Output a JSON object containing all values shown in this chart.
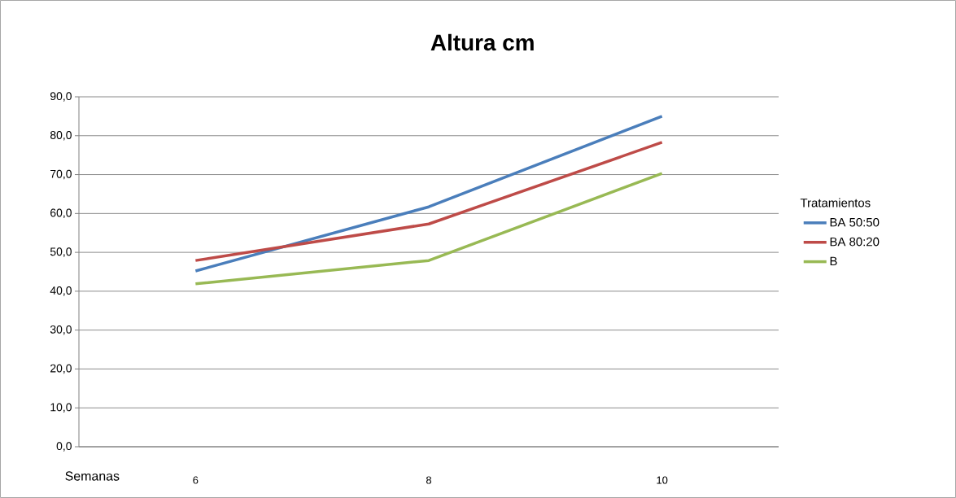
{
  "chart_data": {
    "type": "line",
    "title": "Altura cm",
    "xlabel": "Semanas",
    "categories": [
      "6",
      "8",
      "10"
    ],
    "series": [
      {
        "name": "BA 50:50",
        "color": "#4a7ebb",
        "values": [
          45.2,
          61.7,
          85.0
        ]
      },
      {
        "name": "BA 80:20",
        "color": "#be4b48",
        "values": [
          47.9,
          57.3,
          78.3
        ]
      },
      {
        "name": "B",
        "color": "#98b954",
        "values": [
          41.9,
          47.9,
          70.3
        ]
      }
    ],
    "ylim": [
      0,
      90
    ],
    "yticks": [
      {
        "value": 0,
        "label": "0,0"
      },
      {
        "value": 10,
        "label": "10,0"
      },
      {
        "value": 20,
        "label": "20,0"
      },
      {
        "value": 30,
        "label": "30,0"
      },
      {
        "value": 40,
        "label": "40,0"
      },
      {
        "value": 50,
        "label": "50,0"
      },
      {
        "value": 60,
        "label": "60,0"
      },
      {
        "value": 70,
        "label": "70,0"
      },
      {
        "value": 80,
        "label": "80,0"
      },
      {
        "value": 90,
        "label": "90,0"
      }
    ],
    "legend_title": "Tratamientos",
    "legend": "right",
    "grid": "y",
    "marker": "none",
    "line_style": "solid"
  }
}
